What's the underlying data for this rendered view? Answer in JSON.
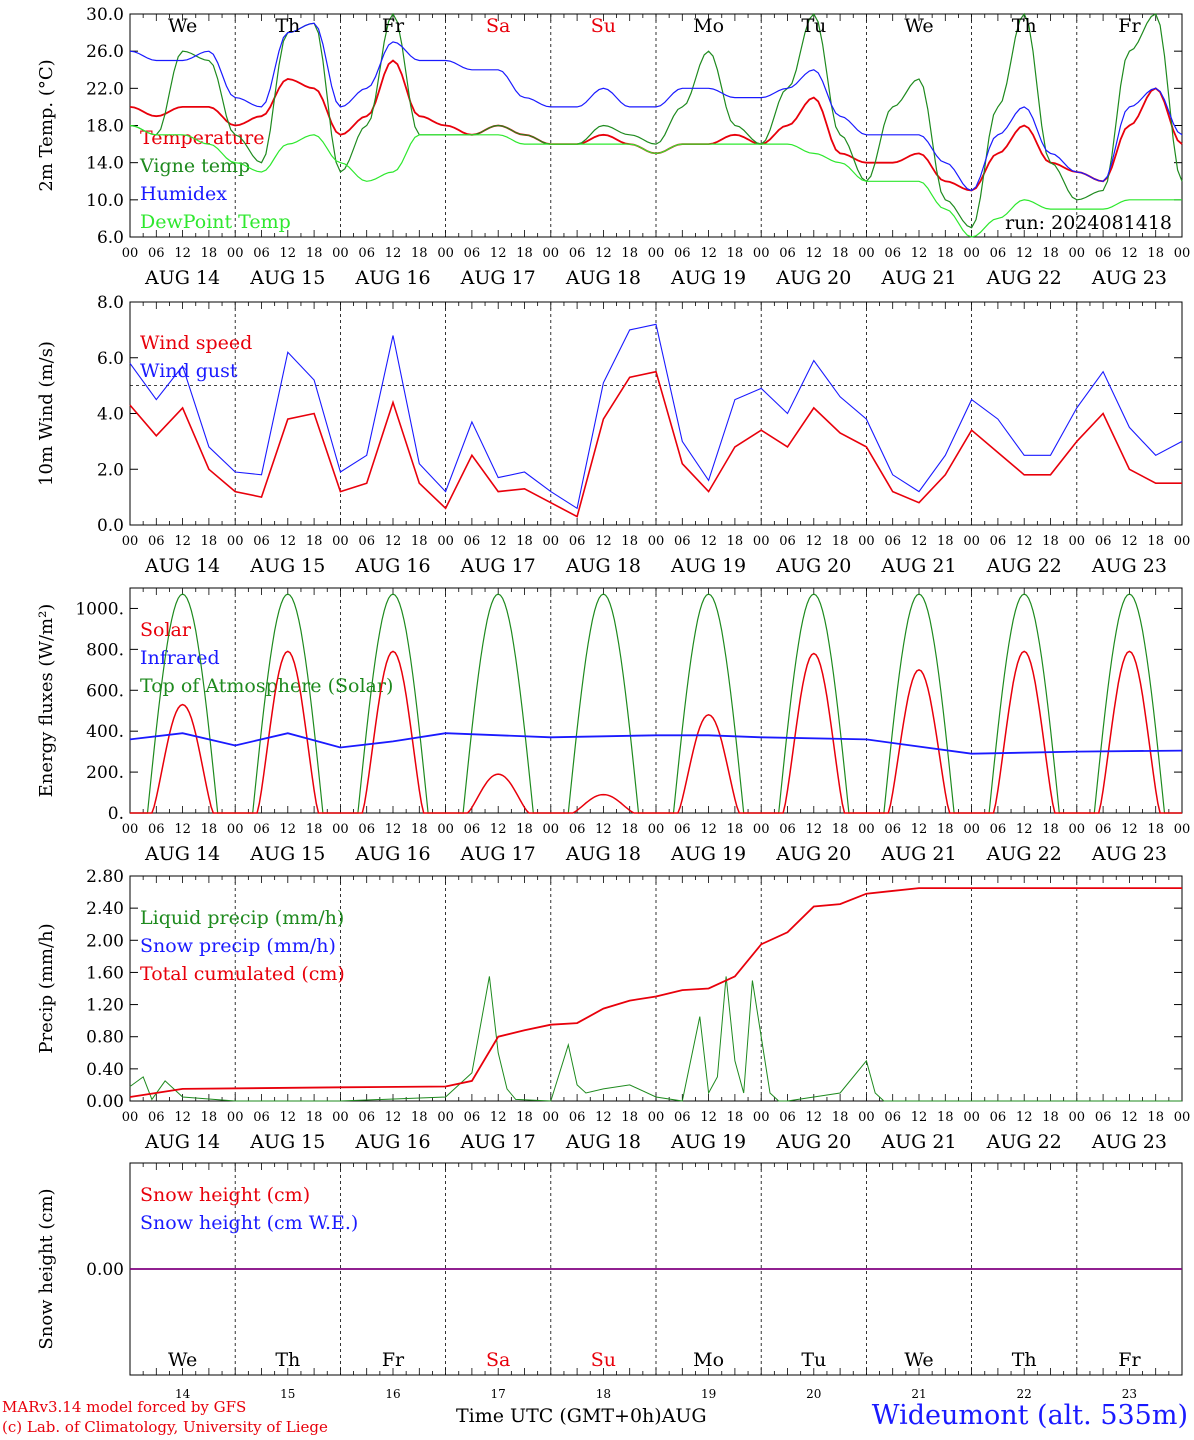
{
  "run_label": "run: 2024081418",
  "x_title": "Time UTC (GMT+0h)",
  "x_title_month": "AUG",
  "station": "Wideumont (alt. 535m)",
  "credits": [
    "MARv3.14 model forced by GFS",
    "(c) Lab. of Climatology, University of Liege"
  ],
  "days": [
    "We",
    "Th",
    "Fr",
    "Sa",
    "Su",
    "Mo",
    "Tu",
    "We",
    "Th",
    "Fr"
  ],
  "weekend_days": [
    "Sa",
    "Su"
  ],
  "date_labels": [
    "AUG 14",
    "AUG 15",
    "AUG 16",
    "AUG 17",
    "AUG 18",
    "AUG 19",
    "AUG 20",
    "AUG 21",
    "AUG 22",
    "AUG 23"
  ],
  "bottom_day_numbers": [
    "14",
    "15",
    "16",
    "17",
    "18",
    "19",
    "20",
    "21",
    "22",
    "23"
  ],
  "hour_ticks": [
    "00",
    "06",
    "12",
    "18"
  ],
  "colors": {
    "red": "#e8000b",
    "green": "#1e8a1e",
    "blue": "#1a1aff",
    "lightgreen": "#2ee82e",
    "snow_line": "#800080"
  },
  "chart_data": [
    {
      "type": "line",
      "ylabel": "2m Temp. (°C)",
      "ylim": [
        6,
        30
      ],
      "yticks": [
        "6.0",
        "10.0",
        "14.0",
        "18.0",
        "22.0",
        "26.0",
        "30.0"
      ],
      "legend": [
        "Temperature",
        "Vigne temp",
        "Humidex",
        "DewPoint Temp"
      ],
      "x_hours": [
        0,
        6,
        12,
        18,
        24,
        30,
        36,
        42,
        48,
        54,
        60,
        66,
        72,
        78,
        84,
        90,
        96,
        102,
        108,
        114,
        120,
        126,
        132,
        138,
        144,
        150,
        156,
        162,
        168,
        174,
        180,
        186,
        192,
        198,
        204,
        210,
        216,
        222,
        228,
        234,
        240
      ],
      "series": [
        {
          "name": "Temperature",
          "values": [
            20,
            19,
            20,
            20,
            18,
            19,
            23,
            22,
            17,
            19,
            25,
            19,
            18,
            17,
            18,
            17,
            16,
            16,
            17,
            16,
            15,
            16,
            16,
            17,
            16,
            18,
            21,
            15,
            14,
            14,
            15,
            12,
            11,
            15,
            18,
            14,
            13,
            12,
            18,
            22,
            16
          ]
        },
        {
          "name": "Vigne temp",
          "values": [
            18,
            17,
            26,
            25,
            17,
            14,
            28,
            29,
            13,
            18,
            30,
            17,
            17,
            17,
            18,
            17,
            16,
            16,
            18,
            17,
            16,
            20,
            26,
            18,
            16,
            22,
            30,
            17,
            12,
            20,
            23,
            10,
            7,
            20,
            30,
            14,
            10,
            11,
            26,
            30,
            12
          ]
        },
        {
          "name": "Humidex",
          "values": [
            26,
            25,
            25,
            26,
            21,
            20,
            28,
            29,
            20,
            22,
            27,
            25,
            25,
            24,
            24,
            21,
            20,
            20,
            22,
            20,
            20,
            22,
            22,
            21,
            21,
            22,
            24,
            19,
            17,
            17,
            17,
            14,
            11,
            17,
            20,
            15,
            13,
            12,
            20,
            22,
            17
          ]
        },
        {
          "name": "DewPoint Temp",
          "values": [
            18,
            17,
            17,
            16,
            14,
            13,
            16,
            17,
            14,
            12,
            13,
            17,
            17,
            17,
            17,
            16,
            16,
            16,
            16,
            16,
            15,
            16,
            16,
            16,
            16,
            16,
            15,
            14,
            12,
            12,
            12,
            9,
            6,
            8,
            10,
            9,
            9,
            9,
            10,
            10,
            10
          ]
        }
      ]
    },
    {
      "type": "line",
      "ylabel": "10m Wind (m/s)",
      "ylim": [
        0,
        8
      ],
      "yticks": [
        "0.0",
        "2.0",
        "4.0",
        "6.0",
        "8.0"
      ],
      "reference_line": 5,
      "legend": [
        "Wind speed",
        "Wind gust"
      ],
      "x_hours": [
        0,
        6,
        12,
        18,
        24,
        30,
        36,
        42,
        48,
        54,
        60,
        66,
        72,
        78,
        84,
        90,
        96,
        102,
        108,
        114,
        120,
        126,
        132,
        138,
        144,
        150,
        156,
        162,
        168,
        174,
        180,
        186,
        192,
        198,
        204,
        210,
        216,
        222,
        228,
        234,
        240
      ],
      "series": [
        {
          "name": "Wind speed",
          "values": [
            4.3,
            3.2,
            4.2,
            2.0,
            1.2,
            1.0,
            3.8,
            4.0,
            1.2,
            1.5,
            4.4,
            1.5,
            0.6,
            2.5,
            1.2,
            1.3,
            0.8,
            0.3,
            3.8,
            5.3,
            5.5,
            2.2,
            1.2,
            2.8,
            3.4,
            2.8,
            4.2,
            3.3,
            2.8,
            1.2,
            0.8,
            1.8,
            3.4,
            2.6,
            1.8,
            1.8,
            3.0,
            4.0,
            2.0,
            1.5,
            1.5
          ]
        },
        {
          "name": "Wind gust",
          "values": [
            5.8,
            4.5,
            5.7,
            2.8,
            1.9,
            1.8,
            6.2,
            5.2,
            1.9,
            2.5,
            6.8,
            2.2,
            1.2,
            3.7,
            1.7,
            1.9,
            1.2,
            0.6,
            5.1,
            7.0,
            7.2,
            3.0,
            1.6,
            4.5,
            4.9,
            4.0,
            5.9,
            4.6,
            3.8,
            1.8,
            1.2,
            2.5,
            4.5,
            3.8,
            2.5,
            2.5,
            4.2,
            5.5,
            3.5,
            2.5,
            3.0
          ]
        }
      ]
    },
    {
      "type": "line",
      "ylabel": "Energy fluxes (W/m²)",
      "ylim": [
        0,
        1100
      ],
      "yticks": [
        "0.",
        "200.",
        "400.",
        "600.",
        "800.",
        "1000."
      ],
      "legend": [
        "Solar",
        "Infrared",
        "Top of Atmosphere (Solar)"
      ],
      "toa_peak": 1070,
      "solar_daily_max": [
        530,
        790,
        790,
        190,
        90,
        480,
        780,
        700,
        790,
        790
      ],
      "infrared": {
        "x_hours": [
          0,
          12,
          24,
          36,
          48,
          60,
          72,
          96,
          120,
          132,
          144,
          168,
          192,
          216,
          240
        ],
        "values": [
          360,
          390,
          330,
          390,
          320,
          350,
          390,
          370,
          380,
          380,
          370,
          360,
          290,
          300,
          305
        ]
      }
    },
    {
      "type": "line",
      "ylabel": "Precip (mm/h)",
      "ylim": [
        0,
        2.8
      ],
      "yticks": [
        "0.00",
        "0.40",
        "0.80",
        "1.20",
        "1.60",
        "2.00",
        "2.40",
        "2.80"
      ],
      "legend": [
        "Liquid precip (mm/h)",
        "Snow precip (mm/h)",
        "Total cumulated (cm)"
      ],
      "series": [
        {
          "name": "Total cumulated (cm)",
          "x_hours": [
            0,
            12,
            48,
            72,
            78,
            84,
            90,
            96,
            102,
            108,
            114,
            120,
            126,
            132,
            138,
            144,
            150,
            156,
            162,
            168,
            180,
            240
          ],
          "values": [
            0.05,
            0.15,
            0.17,
            0.18,
            0.25,
            0.8,
            0.88,
            0.95,
            0.97,
            1.15,
            1.25,
            1.3,
            1.38,
            1.4,
            1.55,
            1.95,
            2.1,
            2.42,
            2.45,
            2.58,
            2.65,
            2.65
          ]
        },
        {
          "name": "Liquid precip (mm/h)",
          "x_hours": [
            0,
            3,
            5,
            8,
            12,
            24,
            48,
            72,
            78,
            82,
            84,
            86,
            88,
            96,
            100,
            102,
            104,
            108,
            114,
            120,
            126,
            130,
            132,
            134,
            136,
            138,
            140,
            142,
            146,
            148,
            150,
            156,
            162,
            168,
            170,
            172,
            180,
            240
          ],
          "values": [
            0.18,
            0.3,
            0.02,
            0.25,
            0.05,
            0.0,
            0.0,
            0.05,
            0.35,
            1.55,
            0.6,
            0.15,
            0.02,
            0.0,
            0.7,
            0.2,
            0.1,
            0.15,
            0.2,
            0.05,
            0.0,
            1.05,
            0.1,
            0.3,
            1.55,
            0.5,
            0.1,
            1.5,
            0.1,
            0.0,
            0.0,
            0.05,
            0.1,
            0.5,
            0.1,
            0.0,
            0.0,
            0.0
          ]
        }
      ]
    },
    {
      "type": "line",
      "ylabel": "Snow height (cm)",
      "ylim": [
        -1,
        1
      ],
      "yticks": [
        "0.00"
      ],
      "legend": [
        "Snow height (cm)",
        "Snow height (cm W.E.)"
      ],
      "series": [
        {
          "name": "Snow height (cm)",
          "x_hours": [
            0,
            240
          ],
          "values": [
            0,
            0
          ]
        },
        {
          "name": "Snow height (cm W.E.)",
          "x_hours": [
            0,
            240
          ],
          "values": [
            0,
            0
          ]
        }
      ]
    }
  ]
}
